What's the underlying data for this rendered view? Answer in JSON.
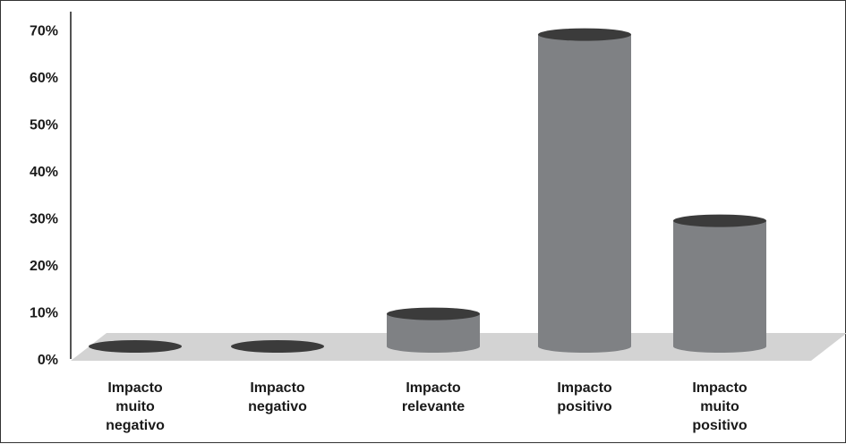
{
  "chart_data": {
    "type": "bar",
    "style": "3d-cylinder",
    "title": "",
    "xlabel": "",
    "ylabel": "",
    "ylim": [
      0,
      70
    ],
    "y_ticks": [
      "0%",
      "10%",
      "20%",
      "30%",
      "40%",
      "50%",
      "60%",
      "70%"
    ],
    "categories": [
      [
        "Impacto",
        "muito",
        "negativo"
      ],
      [
        "Impacto",
        "negativo"
      ],
      [
        "Impacto",
        "relevante"
      ],
      [
        "Impacto",
        "positivo"
      ],
      [
        "Impacto",
        "muito",
        "positivo"
      ]
    ],
    "values": [
      0,
      0,
      7,
      67,
      27
    ],
    "grid": false,
    "legend": "none",
    "colors": {
      "cylinder_body": "#7f8184",
      "cylinder_top": "#3b3b3b",
      "floor": "#d3d3d3",
      "axis": "#1a1a1a"
    }
  }
}
